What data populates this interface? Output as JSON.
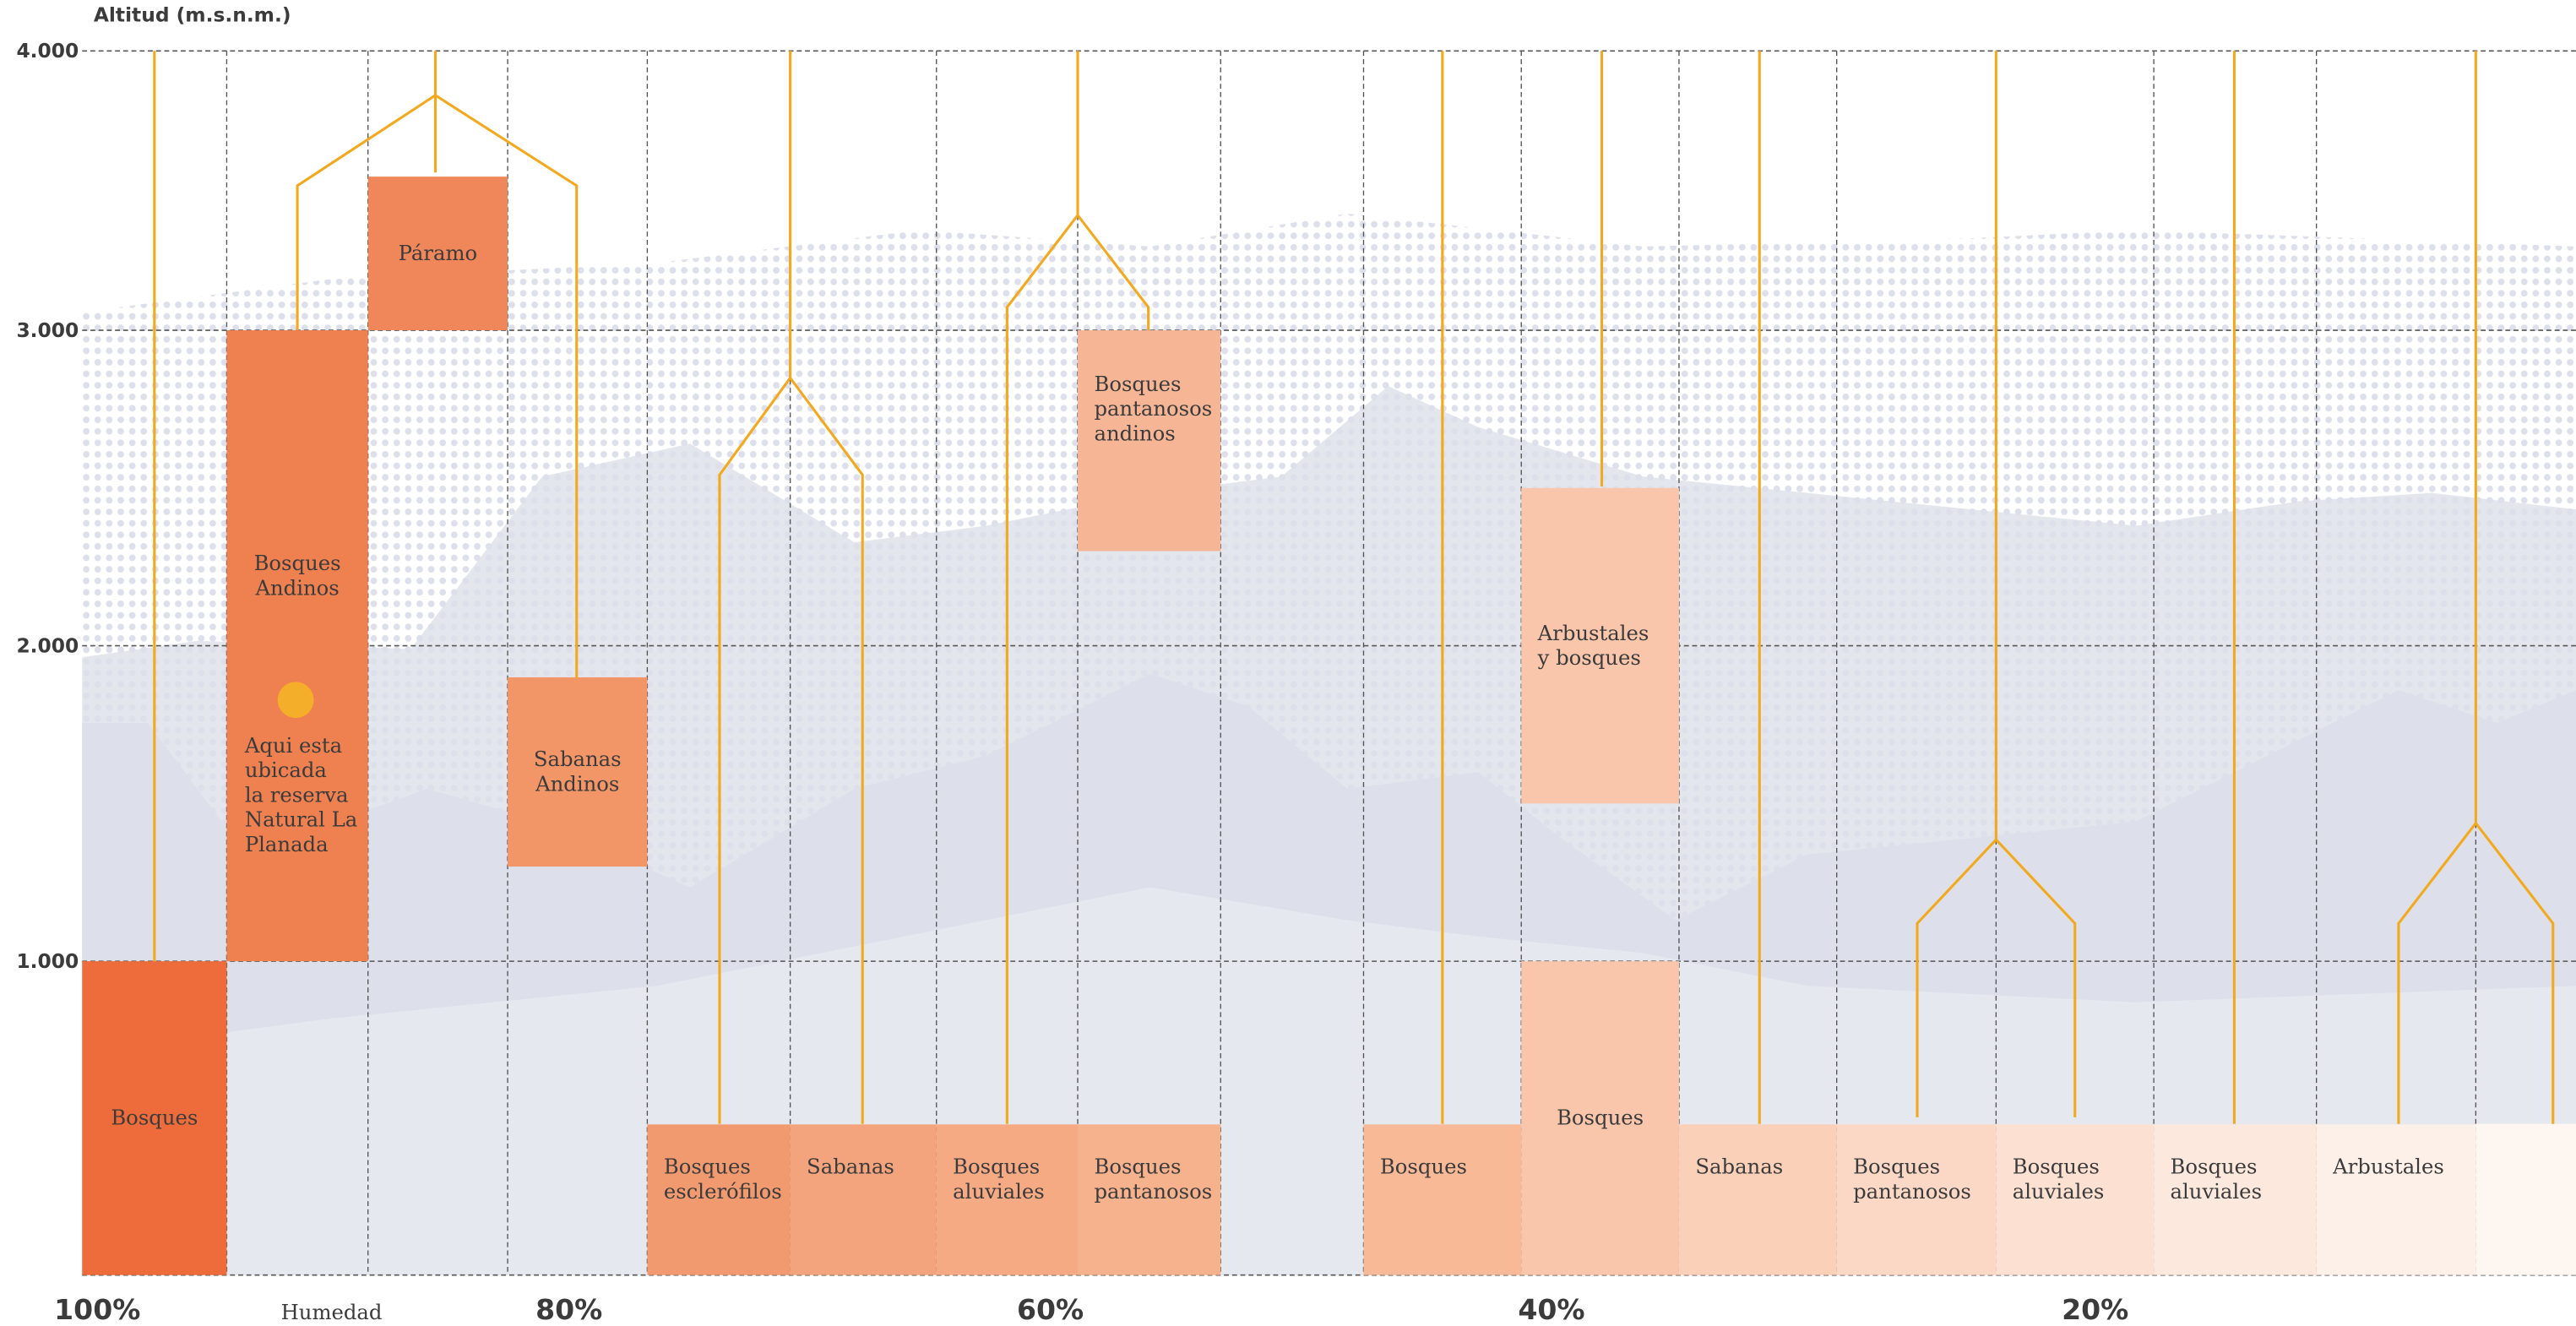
{
  "chart_data": {
    "type": "altitude-blocks",
    "ylabel": "Altitud (m.s.n.m.)",
    "ylim": [
      0,
      4000
    ],
    "yticks": [
      {
        "value": 1000,
        "label": "1.000"
      },
      {
        "value": 2000,
        "label": "2.000"
      },
      {
        "value": 3000,
        "label": "3.000"
      },
      {
        "value": 4000,
        "label": "4.000"
      }
    ],
    "xlabels": [
      "100%",
      "Humedad",
      "80%",
      "60%",
      "40%",
      "20%"
    ],
    "annotation": [
      "Aqui esta",
      "ubicada",
      "la reserva",
      "Natural La",
      "Planada"
    ],
    "grid": true,
    "blocks": [
      {
        "label": [
          "Bosques"
        ],
        "low": 0,
        "high": 1000,
        "color": "#ee6c3b"
      },
      {
        "label": [
          "Bosques",
          "Andinos"
        ],
        "low": 1000,
        "high": 3000,
        "color": "#ef8050"
      },
      {
        "label": [
          "Páramo"
        ],
        "low": 3000,
        "high": 3550,
        "color": "#f0875a"
      },
      {
        "label": [
          "Sabanas",
          "Andinos"
        ],
        "low": 1300,
        "high": 1900,
        "color": "#f29567"
      },
      {
        "label": [
          "Bosques",
          "esclerófilos"
        ],
        "low": 0,
        "high": 480,
        "color": "#f29a6f"
      },
      {
        "label": [
          "Sabanas"
        ],
        "low": 0,
        "high": 480,
        "color": "#f4a47c"
      },
      {
        "label": [
          "Bosques",
          "aluviales"
        ],
        "low": 0,
        "high": 480,
        "color": "#f5aa84"
      },
      {
        "label": [
          "Bosques",
          "pantanosos"
        ],
        "low": 0,
        "high": 480,
        "color": "#f6b28d"
      },
      {
        "label": [
          "Bosques",
          "pantanosos",
          "andinos"
        ],
        "low": 2300,
        "high": 3000,
        "color": "#f6b594"
      },
      {
        "label": [
          "Bosques"
        ],
        "low": 0,
        "high": 480,
        "color": "#f7b996"
      },
      {
        "label": [
          "Arbustales",
          "y bosques"
        ],
        "low": 1500,
        "high": 2500,
        "color": "#f9c6ab"
      },
      {
        "label": [
          "Bosques"
        ],
        "low": 0,
        "high": 1000,
        "color": "#f9c6ab"
      },
      {
        "label": [
          "Sabanas"
        ],
        "low": 0,
        "high": 480,
        "color": "#fad0b8"
      },
      {
        "label": [
          "Bosques",
          "pantanosos"
        ],
        "low": 0,
        "high": 480,
        "color": "#fbd8c5"
      },
      {
        "label": [
          "Bosques",
          "aluviales"
        ],
        "low": 0,
        "high": 480,
        "color": "#fce0d1"
      },
      {
        "label": [
          "Bosques",
          "aluviales"
        ],
        "low": 0,
        "high": 480,
        "color": "#fde8dd"
      },
      {
        "label": [
          "Arbustales"
        ],
        "low": 0,
        "high": 480,
        "color": "#fdf0e8"
      }
    ]
  }
}
